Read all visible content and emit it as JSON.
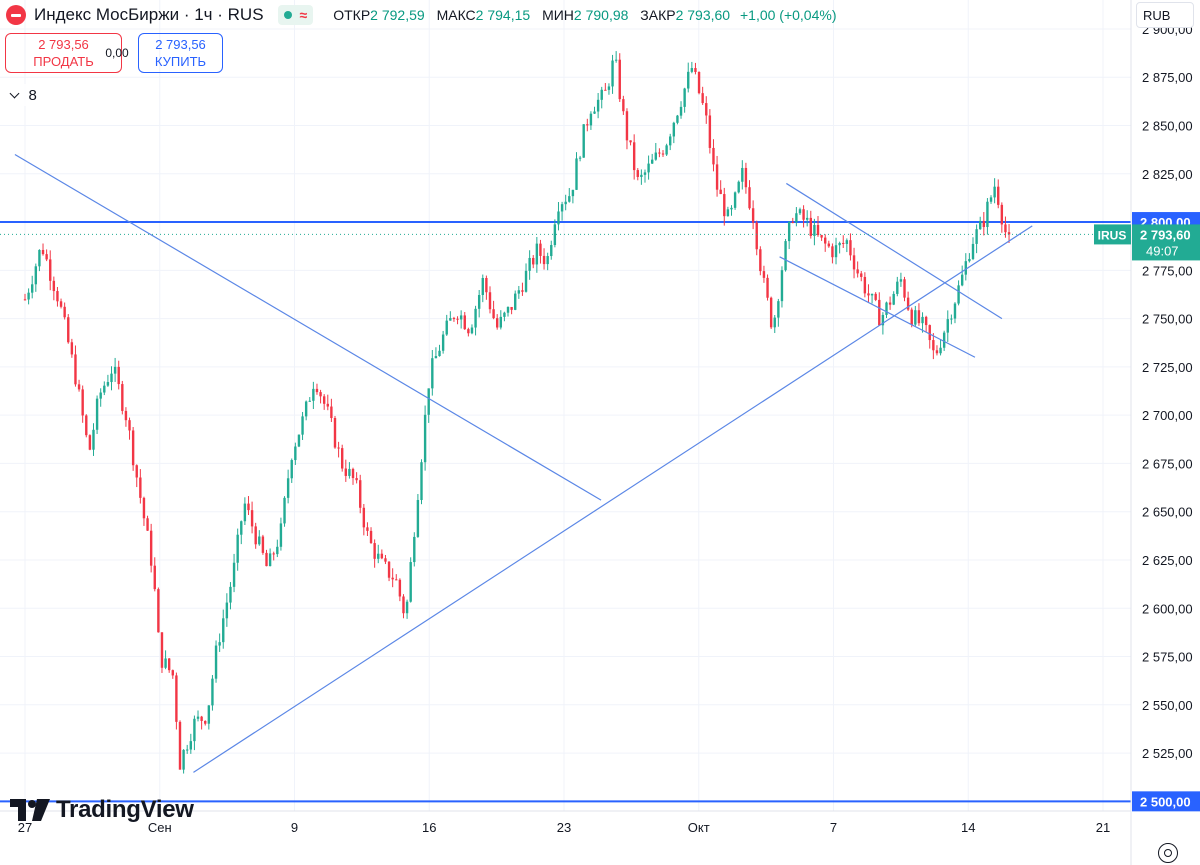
{
  "header": {
    "symbol_title": "Индекс МосБиржи · 1ч · RUS",
    "status_wave": "≈",
    "ohlc": [
      {
        "label": "ОТКР",
        "value": "2 792,59"
      },
      {
        "label": "МАКС",
        "value": "2 794,15"
      },
      {
        "label": "МИН",
        "value": "2 790,98"
      },
      {
        "label": "ЗАКР",
        "value": "2 793,60"
      }
    ],
    "change": "+1,00 (+0,04%)"
  },
  "trade": {
    "sell_price": "2 793,56",
    "sell_label": "ПРОДАТЬ",
    "spread": "0,00",
    "buy_price": "2 793,56",
    "buy_label": "КУПИТЬ"
  },
  "indicators_count": "8",
  "currency": "RUB",
  "brand": "TradingView",
  "price_label": {
    "symbol": "IRUS",
    "price": "2 793,60",
    "countdown": "49:07"
  },
  "level_labels": [
    "2 800,00",
    "2 500,00"
  ],
  "colors": {
    "up": "#22ab94",
    "down": "#f23645",
    "level": "#2962ff",
    "trend": "#5b87e6"
  },
  "chart_data": {
    "type": "candlestick",
    "ylim": [
      2495,
      2915
    ],
    "y_ticks": [
      "2 525,00",
      "2 550,00",
      "2 575,00",
      "2 600,00",
      "2 625,00",
      "2 650,00",
      "2 675,00",
      "2 700,00",
      "2 725,00",
      "2 750,00",
      "2 775,00",
      "2 825,00",
      "2 850,00",
      "2 875,00",
      "2 900,00"
    ],
    "y_tick_values": [
      2525,
      2550,
      2575,
      2600,
      2625,
      2650,
      2675,
      2700,
      2725,
      2750,
      2775,
      2825,
      2850,
      2875,
      2900
    ],
    "x_range_days": [
      -0.3,
      25.2
    ],
    "x_ticks": [
      {
        "label": "27",
        "day": 0
      },
      {
        "label": "Сен",
        "day": 4
      },
      {
        "label": "9",
        "day": 8
      },
      {
        "label": "16",
        "day": 12
      },
      {
        "label": "23",
        "day": 16
      },
      {
        "label": "Окт",
        "day": 20
      },
      {
        "label": "7",
        "day": 24
      },
      {
        "label": "14",
        "day": 28
      },
      {
        "label": "21",
        "day": 32
      }
    ],
    "x_ticks_note": "",
    "horizontal_levels": [
      2800,
      2500
    ],
    "last_price": 2793.6,
    "trend_lines": [
      {
        "from": [
          -0.3,
          2835
        ],
        "to": [
          17.1,
          2656
        ]
      },
      {
        "from": [
          5.0,
          2515
        ],
        "to": [
          29.9,
          2798
        ]
      },
      {
        "from": [
          22.4,
          2782
        ],
        "to": [
          28.2,
          2730
        ]
      },
      {
        "from": [
          22.6,
          2820
        ],
        "to": [
          29.0,
          2750
        ]
      }
    ],
    "anchors": [
      [
        0.0,
        2760
      ],
      [
        0.5,
        2788
      ],
      [
        1.0,
        2760
      ],
      [
        1.5,
        2720
      ],
      [
        1.9,
        2680
      ],
      [
        2.2,
        2710
      ],
      [
        2.6,
        2725
      ],
      [
        3.0,
        2700
      ],
      [
        3.4,
        2660
      ],
      [
        3.8,
        2620
      ],
      [
        4.0,
        2575
      ],
      [
        4.4,
        2565
      ],
      [
        4.6,
        2520
      ],
      [
        5.0,
        2540
      ],
      [
        5.4,
        2545
      ],
      [
        5.7,
        2580
      ],
      [
        6.2,
        2620
      ],
      [
        6.5,
        2655
      ],
      [
        6.8,
        2640
      ],
      [
        7.2,
        2620
      ],
      [
        7.6,
        2640
      ],
      [
        7.9,
        2680
      ],
      [
        8.3,
        2700
      ],
      [
        8.6,
        2720
      ],
      [
        9.0,
        2700
      ],
      [
        9.4,
        2675
      ],
      [
        9.8,
        2665
      ],
      [
        10.2,
        2635
      ],
      [
        10.6,
        2622
      ],
      [
        11.0,
        2615
      ],
      [
        11.3,
        2595
      ],
      [
        11.6,
        2650
      ],
      [
        12.0,
        2720
      ],
      [
        12.4,
        2740
      ],
      [
        12.8,
        2755
      ],
      [
        13.2,
        2745
      ],
      [
        13.6,
        2770
      ],
      [
        14.0,
        2745
      ],
      [
        14.4,
        2755
      ],
      [
        14.8,
        2770
      ],
      [
        15.2,
        2785
      ],
      [
        15.5,
        2780
      ],
      [
        15.8,
        2810
      ],
      [
        16.2,
        2815
      ],
      [
        16.5,
        2840
      ],
      [
        16.8,
        2860
      ],
      [
        17.2,
        2865
      ],
      [
        17.5,
        2885
      ],
      [
        17.8,
        2850
      ],
      [
        18.2,
        2820
      ],
      [
        18.6,
        2830
      ],
      [
        19.0,
        2840
      ],
      [
        19.5,
        2865
      ],
      [
        19.8,
        2880
      ],
      [
        20.2,
        2855
      ],
      [
        20.5,
        2820
      ],
      [
        20.9,
        2800
      ],
      [
        21.3,
        2825
      ],
      [
        21.6,
        2805
      ],
      [
        21.9,
        2770
      ],
      [
        22.2,
        2745
      ],
      [
        22.5,
        2780
      ],
      [
        22.8,
        2805
      ],
      [
        23.2,
        2800
      ],
      [
        23.6,
        2790
      ],
      [
        24.0,
        2785
      ],
      [
        24.4,
        2790
      ],
      [
        24.7,
        2775
      ],
      [
        25.1,
        2760
      ],
      [
        25.4,
        2750
      ],
      [
        25.7,
        2760
      ],
      [
        26.0,
        2770
      ],
      [
        26.3,
        2752
      ],
      [
        26.7,
        2745
      ],
      [
        27.0,
        2730
      ],
      [
        27.4,
        2750
      ],
      [
        27.8,
        2770
      ],
      [
        28.1,
        2790
      ],
      [
        28.4,
        2798
      ],
      [
        28.8,
        2820
      ],
      [
        29.1,
        2795
      ],
      [
        29.3,
        2793.6
      ]
    ]
  }
}
